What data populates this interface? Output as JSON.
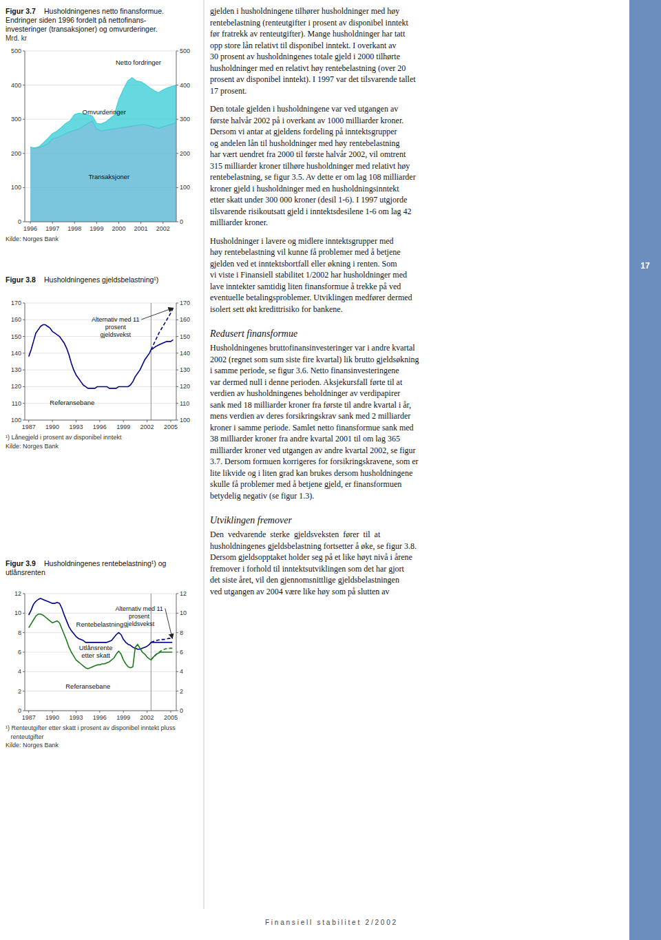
{
  "chart_data": [
    {
      "type": "area",
      "title": "Figur 3.7",
      "subtitle": [
        "Husholdningenes netto finansformue.",
        "Endringer siden 1996 fordelt på nettofinans-",
        "investeringer (transaksjoner) og omvurderinger."
      ],
      "ylabel": "Mrd. kr",
      "notes": [
        "Kilde: Norges Bank"
      ],
      "xlim": [
        1995.75,
        2002.6
      ],
      "xticks": [
        1996,
        1997,
        1998,
        1999,
        2000,
        2001,
        2002
      ],
      "ylim": [
        0,
        500
      ],
      "yticks": [
        0,
        100,
        200,
        300,
        400,
        500
      ],
      "y2lim": [
        0,
        500
      ],
      "y2ticks": [
        0,
        100,
        200,
        300,
        400,
        500
      ],
      "grid": true,
      "series": [
        {
          "type": "area",
          "color": "#5ab8d4",
          "x": [
            1996.0,
            1996.2,
            1996.4,
            1996.6,
            1996.8,
            1997.0,
            1997.2,
            1997.4,
            1997.6,
            1997.8,
            1998.0,
            1998.2,
            1998.4,
            1998.6,
            1998.8,
            1999.0,
            1999.2,
            1999.4,
            1999.6,
            1999.8,
            2000.0,
            2000.2,
            2000.4,
            2000.6,
            2000.8,
            2001.0,
            2001.2,
            2001.4,
            2001.6,
            2001.8,
            2002.0,
            2002.2,
            2002.4,
            2002.6
          ],
          "values": [
            218,
            215,
            218,
            222,
            228,
            243,
            246,
            252,
            258,
            264,
            268,
            272,
            280,
            288,
            295,
            272,
            266,
            268,
            270,
            272,
            274,
            276,
            278,
            280,
            282,
            284,
            284,
            281,
            277,
            274,
            278,
            282,
            286,
            290
          ]
        },
        {
          "type": "area",
          "color": "#40d0d8",
          "x": [
            1996.0,
            1996.2,
            1996.4,
            1996.6,
            1996.8,
            1997.0,
            1997.2,
            1997.4,
            1997.6,
            1997.8,
            1998.0,
            1998.2,
            1998.4,
            1998.6,
            1998.8,
            1999.0,
            1999.2,
            1999.4,
            1999.6,
            1999.8,
            2000.0,
            2000.2,
            2000.4,
            2000.6,
            2000.8,
            2001.0,
            2001.2,
            2001.4,
            2001.6,
            2001.8,
            2002.0,
            2002.2,
            2002.4,
            2002.6
          ],
          "values": [
            218,
            216,
            220,
            232,
            244,
            258,
            265,
            276,
            288,
            296,
            314,
            318,
            316,
            313,
            310,
            288,
            286,
            292,
            302,
            312,
            358,
            386,
            412,
            422,
            412,
            410,
            402,
            392,
            384,
            378,
            386,
            392,
            396,
            400
          ]
        }
      ],
      "annotations": [
        "Netto fordringer",
        "Omvurderinger",
        "Transaksjoner"
      ]
    },
    {
      "type": "line",
      "title": "Figur 3.8",
      "subtitle": [
        "Husholdningenes gjeldsbelastning¹)"
      ],
      "notes": [
        "¹) Lånegjeld i prosent av disponibel inntekt",
        "Kilde: Norges Bank"
      ],
      "xlim": [
        1986.5,
        2005.7
      ],
      "xticks": [
        1987,
        1990,
        1993,
        1996,
        1999,
        2002,
        2005
      ],
      "ylim": [
        100,
        170
      ],
      "yticks": [
        100,
        110,
        120,
        130,
        140,
        150,
        160,
        170
      ],
      "y2lim": [
        100,
        170
      ],
      "y2ticks": [
        100,
        110,
        120,
        130,
        140,
        150,
        160,
        170
      ],
      "grid": true,
      "reference_lines": [
        {
          "x": 2002.5
        }
      ],
      "series": [
        {
          "color": "#00008b",
          "line_style": "solid",
          "x": [
            1987.0,
            1987.3,
            1987.6,
            1987.9,
            1988.2,
            1988.5,
            1988.8,
            1989.1,
            1989.4,
            1989.7,
            1990.0,
            1990.3,
            1990.6,
            1990.9,
            1991.2,
            1991.5,
            1991.8,
            1992.1,
            1992.4,
            1992.7,
            1993.0,
            1993.3,
            1993.6,
            1993.9,
            1994.2,
            1994.5,
            1994.8,
            1995.1,
            1995.4,
            1995.7,
            1996.0,
            1996.3,
            1996.6,
            1996.9,
            1997.2,
            1997.5,
            1997.8,
            1998.1,
            1998.4,
            1998.7,
            1999.0,
            1999.3,
            1999.6,
            1999.9,
            2000.2,
            2000.5,
            2000.8,
            2001.1,
            2001.4,
            2001.7,
            2002.0,
            2002.3,
            2002.5
          ],
          "values": [
            138,
            142,
            147,
            152,
            154,
            156,
            157,
            157,
            156,
            155,
            153,
            152,
            151,
            150,
            148,
            146,
            143,
            139,
            134,
            130,
            127,
            125,
            123,
            121,
            120,
            119,
            119,
            119,
            119,
            120,
            120,
            120,
            120,
            120,
            119,
            119,
            119,
            119,
            120,
            120,
            120,
            120,
            120,
            121,
            123,
            126,
            128,
            130,
            133,
            136,
            138,
            140,
            142
          ]
        },
        {
          "color": "#00008b",
          "line_style": "solid",
          "x": [
            2002.5,
            2002.8,
            2003.1,
            2003.5,
            2004.0,
            2004.5,
            2005.0,
            2005.3
          ],
          "values": [
            142,
            143,
            144,
            145,
            146,
            147,
            147,
            148
          ]
        },
        {
          "color": "#00008b",
          "line_style": "dashed",
          "x": [
            2002.5,
            2002.8,
            2003.1,
            2003.5,
            2004.0,
            2004.5,
            2005.0,
            2005.3
          ],
          "values": [
            142,
            145,
            148,
            152,
            156,
            160,
            164,
            167
          ]
        }
      ],
      "annotations": [
        "Alternativ med 11\nprosent\ngjeldsvekst",
        "Referansebane"
      ]
    },
    {
      "type": "line",
      "title": "Figur 3.9",
      "subtitle": [
        "Husholdningenes rentebelastning¹) og",
        "utlånsrenten"
      ],
      "notes": [
        "¹) Renteutgifter etter skatt i prosent av disponibel inntekt pluss",
        "   renteutgifter",
        "Kilde: Norges Bank"
      ],
      "xlim": [
        1986.5,
        2005.7
      ],
      "xticks": [
        1987,
        1990,
        1993,
        1996,
        1999,
        2002,
        2005
      ],
      "ylim": [
        0,
        12
      ],
      "yticks": [
        0,
        2,
        4,
        6,
        8,
        10,
        12
      ],
      "y2lim": [
        0,
        12
      ],
      "y2ticks": [
        0,
        2,
        4,
        6,
        8,
        10,
        12
      ],
      "grid": true,
      "reference_lines": [
        {
          "x": 2002.5
        }
      ],
      "series": [
        {
          "color": "#00008b",
          "line_style": "solid",
          "x": [
            1987.0,
            1987.3,
            1987.6,
            1987.9,
            1988.2,
            1988.5,
            1988.8,
            1989.1,
            1989.4,
            1989.7,
            1990.0,
            1990.3,
            1990.6,
            1990.9,
            1991.2,
            1991.5,
            1991.8,
            1992.1,
            1992.4,
            1992.7,
            1993.0,
            1993.3,
            1993.6,
            1993.9,
            1994.2,
            1994.5,
            1994.8,
            1995.1,
            1995.4,
            1995.7,
            1996.0,
            1996.3,
            1996.6,
            1996.9,
            1997.2,
            1997.5,
            1997.8,
            1998.1,
            1998.4,
            1998.7,
            1999.0,
            1999.3,
            1999.6,
            1999.9,
            2000.2,
            2000.5,
            2000.8,
            2001.1,
            2001.4,
            2001.7,
            2002.0,
            2002.3,
            2002.5
          ],
          "values": [
            9.8,
            10.3,
            10.9,
            11.2,
            11.4,
            11.5,
            11.4,
            11.3,
            11.2,
            11.1,
            11.0,
            11.0,
            11.1,
            11.0,
            10.5,
            9.8,
            9.2,
            8.6,
            8.2,
            7.9,
            7.6,
            7.4,
            7.3,
            7.2,
            7.0,
            7.0,
            7.0,
            7.0,
            7.0,
            7.0,
            7.0,
            7.0,
            7.0,
            7.0,
            7.1,
            7.2,
            7.5,
            7.8,
            8.0,
            7.8,
            7.3,
            7.0,
            6.8,
            6.7,
            6.5,
            6.4,
            6.3,
            6.3,
            6.4,
            6.5,
            6.6,
            6.8,
            7.0
          ]
        },
        {
          "color": "#1a7a1a",
          "line_style": "solid",
          "x": [
            1987.0,
            1987.3,
            1987.6,
            1987.9,
            1988.2,
            1988.5,
            1988.8,
            1989.1,
            1989.4,
            1989.7,
            1990.0,
            1990.3,
            1990.6,
            1990.9,
            1991.2,
            1991.5,
            1991.8,
            1992.1,
            1992.4,
            1992.7,
            1993.0,
            1993.3,
            1993.6,
            1993.9,
            1994.2,
            1994.5,
            1994.8,
            1995.1,
            1995.4,
            1995.7,
            1996.0,
            1996.3,
            1996.6,
            1996.9,
            1997.2,
            1997.5,
            1997.8,
            1998.1,
            1998.4,
            1998.7,
            1999.0,
            1999.3,
            1999.6,
            1999.9,
            2000.2,
            2000.5,
            2000.8,
            2001.1,
            2001.4,
            2001.7,
            2002.0,
            2002.3,
            2002.5
          ],
          "values": [
            8.5,
            8.9,
            9.3,
            9.7,
            9.9,
            9.9,
            9.8,
            9.6,
            9.4,
            9.2,
            9.0,
            9.1,
            9.2,
            9.0,
            8.4,
            7.8,
            7.2,
            6.5,
            6.0,
            5.6,
            5.2,
            5.0,
            4.8,
            4.6,
            4.4,
            4.3,
            4.4,
            4.5,
            4.6,
            4.7,
            4.7,
            4.8,
            4.8,
            4.9,
            5.0,
            5.2,
            5.4,
            5.8,
            6.1,
            5.8,
            5.2,
            4.8,
            4.5,
            4.4,
            4.5,
            6.5,
            6.8,
            6.4,
            6.0,
            5.8,
            5.5,
            5.3,
            5.2
          ]
        },
        {
          "color": "#00008b",
          "line_style": "solid",
          "x": [
            2002.5,
            2002.8,
            2003.2,
            2003.7,
            2004.2,
            2004.7,
            2005.2
          ],
          "values": [
            7.0,
            7.0,
            7.0,
            7.0,
            7.0,
            7.0,
            7.0
          ]
        },
        {
          "color": "#00008b",
          "line_style": "dashed",
          "x": [
            2002.5,
            2002.8,
            2003.2,
            2003.7,
            2004.2,
            2004.7,
            2005.2
          ],
          "values": [
            7.0,
            7.1,
            7.2,
            7.3,
            7.3,
            7.4,
            7.4
          ]
        },
        {
          "color": "#1a7a1a",
          "line_style": "solid",
          "x": [
            2002.5,
            2002.8,
            2003.2,
            2003.7,
            2004.2,
            2004.7,
            2005.2
          ],
          "values": [
            5.2,
            5.5,
            5.8,
            6.0,
            6.0,
            6.0,
            6.0
          ]
        },
        {
          "color": "#1a7a1a",
          "line_style": "dashed",
          "x": [
            2002.5,
            2002.8,
            2003.2,
            2003.7,
            2004.2,
            2004.7,
            2005.2
          ],
          "values": [
            5.2,
            5.5,
            5.8,
            6.1,
            6.3,
            6.4,
            6.4
          ]
        }
      ],
      "annotations": [
        "Rentebelastning",
        "Utlånsrente\netter skatt",
        "Referansebane",
        "Alternativ med 11\nprosent\ngjeldsvekst"
      ]
    }
  ],
  "body": [
    {
      "lines": [
        "gjelden i husholdningene tilhører husholdninger med høy",
        "rentebelastning (renteutgifter i prosent av disponibel inntekt",
        "før fratrekk av renteutgifter). Mange husholdninger har tatt",
        "opp store lån relativt til disponibel inntekt. I overkant av",
        "30 prosent av husholdningenes totale gjeld i 2000 tilhørte",
        "husholdninger med en relativt høy rentebelastning (over 20",
        "prosent av disponibel inntekt). I 1997 var det tilsvarende tallet",
        "17 prosent."
      ]
    },
    {
      "lines": [
        "Den totale gjelden i husholdningene var ved utgangen av",
        "første halvår 2002 på i overkant av 1000 milliarder kroner.",
        "Dersom vi antar at gjeldens fordeling på inntektsgrupper",
        "og andelen lån til husholdninger med høy rentebelastning",
        "har vært uendret fra 2000 til første halvår 2002, vil omtrent",
        "315 milliarder kroner tilhøre husholdninger med relativt høy",
        "rentebelastning, se figur 3.5. Av dette er om lag 108 milliarder",
        "kroner gjeld i husholdninger med en husholdningsinntekt",
        "etter skatt under 300 000 kroner (desil 1-6). I 1997 utgjorde",
        "tilsvarende risikoutsatt gjeld i inntektsdesilene 1-6 om lag 42",
        "milliarder kroner."
      ]
    },
    {
      "lines": [
        "Husholdninger i lavere og midlere inntektsgrupper med",
        "høy rentebelastning vil kunne få problemer med å betjene",
        "gjelden ved et inntektsbortfall eller økning i renten. Som",
        "vi viste i Finansiell stabilitet 1/2002 har husholdninger med",
        "lave inntekter samtidig liten finansformue å trekke på ved",
        "eventuelle betalingsproblemer. Utviklingen medfører dermed",
        "isolert sett økt kredittrisiko for bankene."
      ]
    },
    {
      "heading": "Redusert finansformue"
    },
    {
      "lines": [
        "Husholdningenes bruttofinansinvesteringer var i andre kvartal",
        "2002 (regnet som sum siste fire kvartal) lik brutto gjeldsøkning",
        "i samme periode, se figur 3.6. Netto finansinvesteringene",
        "var dermed null i denne perioden. Aksjekursfall førte til at",
        "verdien av husholdningenes beholdninger av verdipapirer",
        "sank med 18 milliarder kroner fra første til andre kvartal i år,",
        "mens verdien av deres forsikringskrav sank med 2 milliarder",
        "kroner i samme periode. Samlet netto finansformue sank med",
        "38 milliarder kroner fra andre kvartal 2001 til om lag 365",
        "milliarder kroner ved utgangen av andre kvartal 2002, se figur",
        "3.7. Dersom formuen korrigeres for forsikringskravene, som er",
        "lite likvide og i liten grad kan brukes dersom husholdningene",
        "skulle få problemer med å betjene gjeld, er finansformuen",
        "betydelig negativ (se figur 1.3)."
      ]
    },
    {
      "heading": "Utviklingen fremover"
    },
    {
      "lines": [
        "Den  vedvarende  sterke  gjeldsveksten  fører  til  at",
        "husholdningenes gjeldsbelastning fortsetter å øke, se figur 3.8.",
        "Dersom gjeldsopptaket holder seg på et like høyt nivå i årene",
        "fremover i forhold til inntektsutviklingen som det har gjort",
        "det siste året, vil den gjennomsnittlige gjeldsbelastningen",
        "ved utgangen av 2004 være like høy som på slutten av"
      ]
    }
  ],
  "page_number": "17",
  "footer": "F i n a n s i e l l   s t a b i l i t e t   2 / 2 0 0 2"
}
